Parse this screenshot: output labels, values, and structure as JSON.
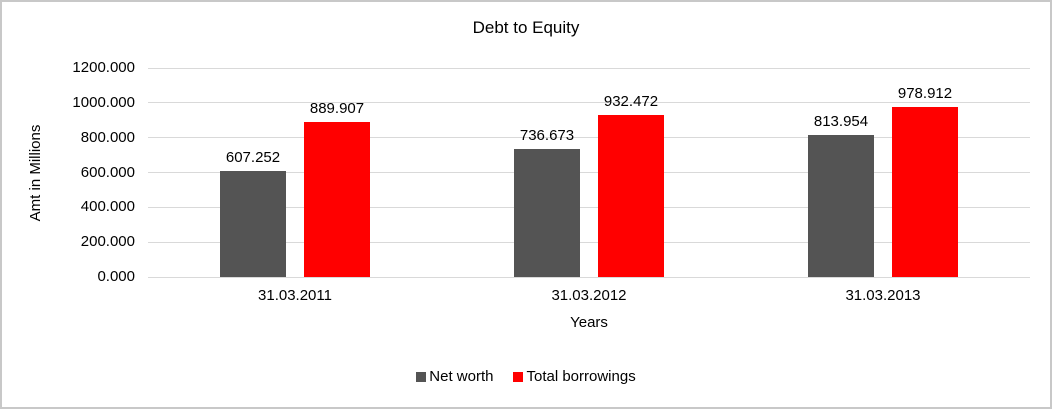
{
  "chart_data": {
    "type": "bar",
    "title": "Debt to Equity",
    "xlabel": "Years",
    "ylabel": "Amt in Millions",
    "categories": [
      "31.03.2011",
      "31.03.2012",
      "31.03.2013"
    ],
    "series": [
      {
        "name": "Net worth",
        "color": "#545454",
        "values": [
          607.252,
          736.673,
          813.954
        ]
      },
      {
        "name": "Total borrowings",
        "color": "#ff0000",
        "values": [
          889.907,
          932.472,
          978.912
        ]
      }
    ],
    "data_label_decimals": 3,
    "ylim": [
      0,
      1200
    ],
    "ytick_labels": [
      "0.000",
      "200.000",
      "400.000",
      "600.000",
      "800.000",
      "1000.000",
      "1200.000"
    ],
    "grid": true,
    "legend_position": "bottom"
  },
  "colors": {
    "background": "#ffffff",
    "frame_border": "#c8c8c8",
    "gridline": "#d9d9d9",
    "text": "#000000",
    "net_worth": "#545454",
    "total_borrowings": "#ff0000"
  }
}
